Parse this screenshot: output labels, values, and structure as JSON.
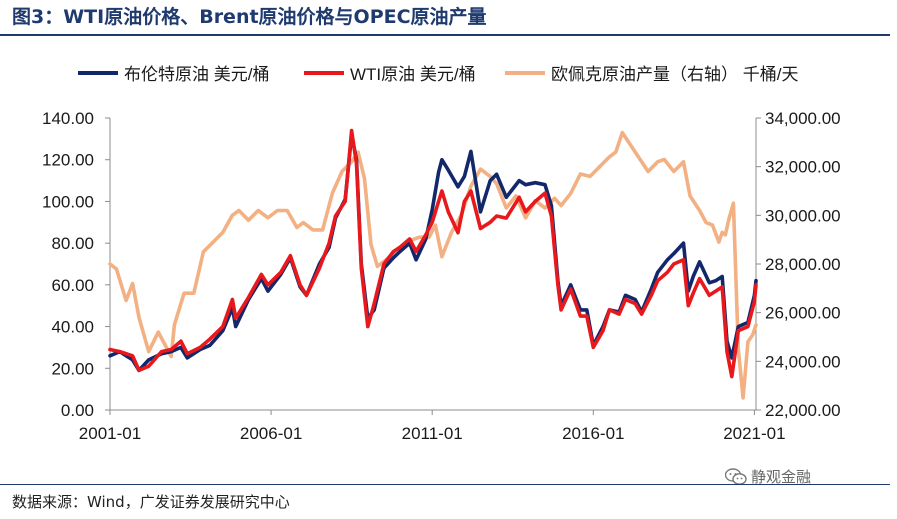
{
  "figure": {
    "title": "图3：WTI原油价格、Brent原油价格与OPEC原油产量",
    "source": "数据来源：Wind，广发证券发展研究中心",
    "watermark": "静观金融"
  },
  "colors": {
    "title": "#1e3a6e",
    "brent": "#13286b",
    "wti": "#e8191c",
    "opec": "#f2b083"
  },
  "chart_data": {
    "type": "line",
    "title": "",
    "xlabel": "",
    "ylabel_left": "",
    "ylabel_right": "",
    "x_ticks": [
      "2001-01",
      "2006-01",
      "2011-01",
      "2016-01",
      "2021-01"
    ],
    "x_range": [
      2001.0,
      2021.05
    ],
    "ylim_left": [
      0,
      140
    ],
    "yticks_left": [
      "0.00",
      "20.00",
      "40.00",
      "60.00",
      "80.00",
      "100.00",
      "120.00",
      "140.00"
    ],
    "ylim_right": [
      22000,
      34000
    ],
    "yticks_right": [
      "22,000.00",
      "24,000.00",
      "26,000.00",
      "28,000.00",
      "30,000.00",
      "32,000.00",
      "34,000.00"
    ],
    "legend_position": "top",
    "grid": false,
    "series": [
      {
        "name": "布伦特原油 美元/桶",
        "axis": "left",
        "color": "#13286b",
        "x": [
          2001,
          2001.3,
          2001.7,
          2001.9,
          2002.2,
          2002.6,
          2002.9,
          2003.2,
          2003.4,
          2003.8,
          2004.1,
          2004.5,
          2004.8,
          2004.9,
          2005.3,
          2005.7,
          2005.9,
          2006.3,
          2006.6,
          2006.9,
          2007.1,
          2007.5,
          2007.8,
          2008.0,
          2008.3,
          2008.5,
          2008.65,
          2008.8,
          2009.0,
          2009.2,
          2009.5,
          2009.8,
          2010.0,
          2010.3,
          2010.5,
          2010.8,
          2011.0,
          2011.2,
          2011.3,
          2011.5,
          2011.8,
          2012.0,
          2012.2,
          2012.5,
          2012.8,
          2013.0,
          2013.3,
          2013.7,
          2013.9,
          2014.2,
          2014.5,
          2014.7,
          2014.9,
          2015.0,
          2015.3,
          2015.6,
          2015.8,
          2016.0,
          2016.3,
          2016.5,
          2016.8,
          2017.0,
          2017.3,
          2017.5,
          2017.8,
          2018.0,
          2018.3,
          2018.5,
          2018.8,
          2018.95,
          2019.1,
          2019.3,
          2019.6,
          2019.8,
          2020.0,
          2020.15,
          2020.3,
          2020.5,
          2020.8,
          2021.0,
          2021.05
        ],
        "values": [
          26,
          28,
          24,
          19,
          24,
          27,
          28,
          30,
          25,
          29,
          31,
          38,
          49,
          40,
          53,
          63,
          57,
          65,
          73,
          59,
          55,
          70,
          78,
          92,
          101,
          132,
          120,
          70,
          44,
          48,
          68,
          73,
          76,
          80,
          72,
          82,
          96,
          114,
          120,
          115,
          107,
          112,
          124,
          95,
          110,
          113,
          102,
          110,
          108,
          109,
          108,
          98,
          62,
          50,
          60,
          48,
          48,
          31,
          40,
          48,
          47,
          55,
          53,
          47,
          58,
          66,
          72,
          75,
          80,
          57,
          64,
          71,
          61,
          62,
          64,
          33,
          25,
          40,
          42,
          55,
          62
        ]
      },
      {
        "name": "WTI原油 美元/桶",
        "axis": "left",
        "color": "#e8191c",
        "x": [
          2001,
          2001.3,
          2001.7,
          2001.9,
          2002.2,
          2002.6,
          2002.9,
          2003.2,
          2003.4,
          2003.8,
          2004.1,
          2004.5,
          2004.8,
          2004.9,
          2005.3,
          2005.7,
          2005.9,
          2006.3,
          2006.6,
          2006.9,
          2007.1,
          2007.5,
          2007.8,
          2008.0,
          2008.3,
          2008.5,
          2008.65,
          2008.8,
          2009.0,
          2009.2,
          2009.5,
          2009.8,
          2010.0,
          2010.3,
          2010.5,
          2010.8,
          2011.0,
          2011.2,
          2011.3,
          2011.5,
          2011.8,
          2012.0,
          2012.2,
          2012.5,
          2012.8,
          2013.0,
          2013.3,
          2013.7,
          2013.9,
          2014.2,
          2014.5,
          2014.7,
          2014.9,
          2015.0,
          2015.3,
          2015.6,
          2015.8,
          2016.0,
          2016.3,
          2016.5,
          2016.8,
          2017.0,
          2017.3,
          2017.5,
          2017.8,
          2018.0,
          2018.3,
          2018.5,
          2018.8,
          2018.95,
          2019.1,
          2019.3,
          2019.6,
          2019.8,
          2020.0,
          2020.15,
          2020.3,
          2020.5,
          2020.8,
          2021.0,
          2021.05
        ],
        "values": [
          29,
          28,
          26,
          19,
          21,
          28,
          29,
          33,
          27,
          30,
          34,
          40,
          53,
          44,
          54,
          65,
          60,
          66,
          74,
          60,
          55,
          68,
          80,
          93,
          100,
          134,
          118,
          68,
          40,
          51,
          70,
          76,
          78,
          82,
          76,
          84,
          90,
          100,
          105,
          95,
          85,
          100,
          105,
          87,
          90,
          93,
          92,
          102,
          95,
          100,
          104,
          93,
          60,
          48,
          58,
          45,
          45,
          30,
          38,
          48,
          46,
          53,
          51,
          46,
          55,
          62,
          66,
          70,
          72,
          50,
          56,
          63,
          55,
          57,
          59,
          28,
          16,
          38,
          40,
          52,
          60
        ]
      },
      {
        "name": "欧佩克原油产量（右轴） 千桶/天",
        "axis": "right",
        "color": "#f2b083",
        "x": [
          2001,
          2001.2,
          2001.5,
          2001.7,
          2001.9,
          2002.2,
          2002.5,
          2002.9,
          2003.0,
          2003.3,
          2003.6,
          2003.9,
          2004.2,
          2004.5,
          2004.8,
          2005.0,
          2005.3,
          2005.6,
          2005.9,
          2006.2,
          2006.5,
          2006.8,
          2007.0,
          2007.3,
          2007.6,
          2007.9,
          2008.2,
          2008.5,
          2008.7,
          2008.9,
          2009.1,
          2009.3,
          2009.6,
          2009.9,
          2010.2,
          2010.6,
          2010.9,
          2011.1,
          2011.3,
          2011.6,
          2011.9,
          2012.2,
          2012.5,
          2012.8,
          2013.0,
          2013.3,
          2013.6,
          2013.9,
          2014.2,
          2014.5,
          2014.8,
          2015.0,
          2015.3,
          2015.6,
          2015.9,
          2016.2,
          2016.5,
          2016.7,
          2016.9,
          2017.1,
          2017.4,
          2017.7,
          2018.0,
          2018.2,
          2018.5,
          2018.8,
          2019.0,
          2019.3,
          2019.5,
          2019.7,
          2019.9,
          2020.0,
          2020.1,
          2020.2,
          2020.35,
          2020.5,
          2020.65,
          2020.8,
          2020.95,
          2021.05
        ],
        "values": [
          28000,
          27800,
          26500,
          27200,
          25800,
          24400,
          25200,
          24200,
          25500,
          26800,
          26800,
          28500,
          28900,
          29300,
          30000,
          30200,
          29800,
          30200,
          29900,
          30200,
          30200,
          29500,
          29700,
          29400,
          29400,
          30900,
          31800,
          32200,
          32600,
          31500,
          28800,
          27900,
          28200,
          28600,
          28900,
          29100,
          29100,
          29600,
          28300,
          29300,
          30000,
          31200,
          31900,
          31600,
          31300,
          30300,
          30800,
          29900,
          30600,
          30300,
          30700,
          30400,
          30900,
          31700,
          31600,
          32000,
          32400,
          32600,
          33400,
          33000,
          32400,
          31800,
          32200,
          32300,
          31800,
          32200,
          30800,
          30200,
          29700,
          29600,
          28900,
          29300,
          29200,
          29800,
          30500,
          24500,
          22500,
          24800,
          25100,
          25500
        ]
      }
    ]
  }
}
